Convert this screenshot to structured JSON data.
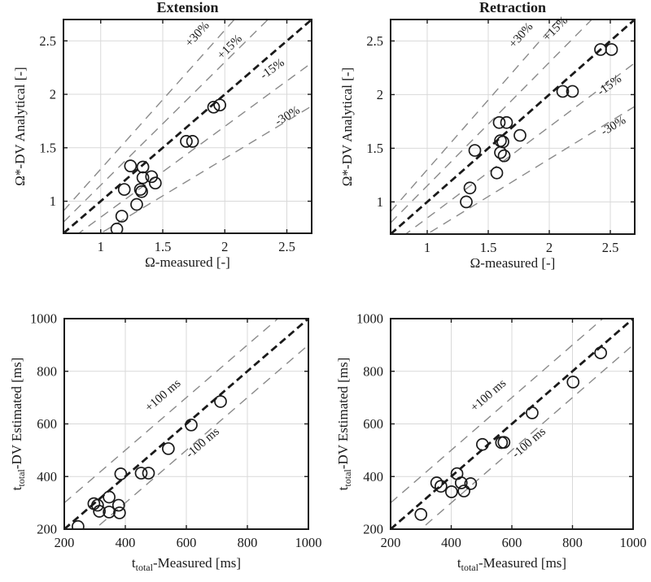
{
  "figure": {
    "background": "#ffffff",
    "ink_color": "#1a1a1a",
    "tolerance_color": "#8a8a8a",
    "grid_color": "#d9d9d9"
  },
  "chart_data": [
    {
      "id": "extension-omega",
      "type": "scatter",
      "title": "Extension",
      "xlabel": [
        {
          "text": "Ω-measured [-]",
          "sub": false
        }
      ],
      "ylabel": [
        {
          "text": "Ω*-DV Analytical [-]",
          "sub": false
        }
      ],
      "xlim": [
        0.7,
        2.7
      ],
      "ylim": [
        0.7,
        2.7
      ],
      "xticks": [
        1,
        1.5,
        2,
        2.5
      ],
      "yticks": [
        1,
        1.5,
        2,
        2.5
      ],
      "grid": true,
      "legend": "none",
      "ref_lines": [
        {
          "slope": 1.3,
          "offset": 0,
          "role": "tolerance",
          "label": "+30%"
        },
        {
          "slope": 1.15,
          "offset": 0,
          "role": "tolerance",
          "label": "+15%"
        },
        {
          "slope": 1.0,
          "offset": 0,
          "role": "identity",
          "label": ""
        },
        {
          "slope": 0.85,
          "offset": 0,
          "role": "tolerance",
          "label": "-15%"
        },
        {
          "slope": 0.7,
          "offset": 0,
          "role": "tolerance",
          "label": "-30%"
        }
      ],
      "annotations": [
        {
          "text": "+30%",
          "x": 1.8,
          "y": 2.54,
          "rot": -48
        },
        {
          "text": "+15%",
          "x": 2.06,
          "y": 2.42,
          "rot": -45
        },
        {
          "text": "-15%",
          "x": 2.4,
          "y": 2.21,
          "rot": -36
        },
        {
          "text": "-30%",
          "x": 2.52,
          "y": 1.77,
          "rot": -31
        }
      ],
      "points": [
        [
          1.13,
          0.74
        ],
        [
          1.17,
          0.86
        ],
        [
          1.29,
          0.97
        ],
        [
          1.19,
          1.11
        ],
        [
          1.32,
          1.11
        ],
        [
          1.33,
          1.09
        ],
        [
          1.24,
          1.33
        ],
        [
          1.34,
          1.32
        ],
        [
          1.34,
          1.22
        ],
        [
          1.41,
          1.23
        ],
        [
          1.44,
          1.17
        ],
        [
          1.69,
          1.56
        ],
        [
          1.74,
          1.56
        ],
        [
          1.91,
          1.88
        ],
        [
          1.96,
          1.9
        ]
      ]
    },
    {
      "id": "retraction-omega",
      "type": "scatter",
      "title": "Retraction",
      "xlabel": [
        {
          "text": "Ω-measured [-]",
          "sub": false
        }
      ],
      "ylabel": [
        {
          "text": "Ω*-DV Analytical [-]",
          "sub": false
        }
      ],
      "xlim": [
        0.7,
        2.7
      ],
      "ylim": [
        0.7,
        2.7
      ],
      "xticks": [
        1,
        1.5,
        2,
        2.5
      ],
      "yticks": [
        1,
        1.5,
        2,
        2.5
      ],
      "grid": true,
      "legend": "none",
      "ref_lines": [
        {
          "slope": 1.3,
          "offset": 0,
          "role": "tolerance",
          "label": "+30%"
        },
        {
          "slope": 1.15,
          "offset": 0,
          "role": "tolerance",
          "label": "+15%"
        },
        {
          "slope": 1.0,
          "offset": 0,
          "role": "identity",
          "label": ""
        },
        {
          "slope": 0.85,
          "offset": 0,
          "role": "tolerance",
          "label": "-15%"
        },
        {
          "slope": 0.7,
          "offset": 0,
          "role": "tolerance",
          "label": "-30%"
        }
      ],
      "annotations": [
        {
          "text": "+30%",
          "x": 1.79,
          "y": 2.53,
          "rot": -48
        },
        {
          "text": "+15%",
          "x": 2.07,
          "y": 2.59,
          "rot": -45
        },
        {
          "text": "-15%",
          "x": 2.51,
          "y": 2.06,
          "rot": -36
        },
        {
          "text": "-30%",
          "x": 2.54,
          "y": 1.68,
          "rot": -31
        }
      ],
      "points": [
        [
          1.32,
          1.0
        ],
        [
          1.35,
          1.13
        ],
        [
          1.57,
          1.27
        ],
        [
          1.39,
          1.48
        ],
        [
          1.6,
          1.46
        ],
        [
          1.63,
          1.43
        ],
        [
          1.6,
          1.57
        ],
        [
          1.62,
          1.56
        ],
        [
          1.59,
          1.74
        ],
        [
          1.65,
          1.74
        ],
        [
          1.76,
          1.62
        ],
        [
          2.11,
          2.03
        ],
        [
          2.19,
          2.03
        ],
        [
          2.42,
          2.42
        ],
        [
          2.51,
          2.42
        ]
      ]
    },
    {
      "id": "extension-time",
      "type": "scatter",
      "title": "",
      "xlabel": [
        {
          "text": "t",
          "sub": false
        },
        {
          "text": "total",
          "sub": true
        },
        {
          "text": "-Measured [ms]",
          "sub": false
        }
      ],
      "ylabel": [
        {
          "text": "t",
          "sub": false
        },
        {
          "text": "total",
          "sub": true
        },
        {
          "text": "-DV Estimated [ms]",
          "sub": false
        }
      ],
      "xlim": [
        200,
        1000
      ],
      "ylim": [
        200,
        1000
      ],
      "xticks": [
        200,
        400,
        600,
        800,
        1000
      ],
      "yticks": [
        200,
        400,
        600,
        800,
        1000
      ],
      "grid": true,
      "legend": "none",
      "ref_lines": [
        {
          "slope": 1,
          "offset": 100,
          "role": "tolerance",
          "label": "+100 ms"
        },
        {
          "slope": 1,
          "offset": 0,
          "role": "identity",
          "label": ""
        },
        {
          "slope": 1,
          "offset": -100,
          "role": "tolerance",
          "label": "-100 ms"
        }
      ],
      "annotations": [
        {
          "text": "+100 ms",
          "x": 531,
          "y": 698,
          "rot": -41
        },
        {
          "text": "-100 ms",
          "x": 661,
          "y": 518,
          "rot": -41
        }
      ],
      "points": [
        [
          245,
          210
        ],
        [
          297,
          297
        ],
        [
          309,
          291
        ],
        [
          315,
          268
        ],
        [
          347,
          322
        ],
        [
          347,
          265
        ],
        [
          378,
          291
        ],
        [
          381,
          262
        ],
        [
          385,
          410
        ],
        [
          452,
          413
        ],
        [
          476,
          413
        ],
        [
          541,
          506
        ],
        [
          616,
          596
        ],
        [
          712,
          685
        ]
      ]
    },
    {
      "id": "retraction-time",
      "type": "scatter",
      "title": "",
      "xlabel": [
        {
          "text": "t",
          "sub": false
        },
        {
          "text": "total",
          "sub": true
        },
        {
          "text": "-Measured [ms]",
          "sub": false
        }
      ],
      "ylabel": [
        {
          "text": "t",
          "sub": false
        },
        {
          "text": "total",
          "sub": true
        },
        {
          "text": "-DV Estimated [ms]",
          "sub": false
        }
      ],
      "xlim": [
        200,
        1000
      ],
      "ylim": [
        200,
        1000
      ],
      "xticks": [
        200,
        400,
        600,
        800,
        1000
      ],
      "yticks": [
        200,
        400,
        600,
        800,
        1000
      ],
      "grid": true,
      "legend": "none",
      "ref_lines": [
        {
          "slope": 1,
          "offset": 100,
          "role": "tolerance",
          "label": "+100 ms"
        },
        {
          "slope": 1,
          "offset": 0,
          "role": "identity",
          "label": ""
        },
        {
          "slope": 1,
          "offset": -100,
          "role": "tolerance",
          "label": "-100 ms"
        }
      ],
      "annotations": [
        {
          "text": "+100 ms",
          "x": 530,
          "y": 698,
          "rot": -41
        },
        {
          "text": "-100 ms",
          "x": 664,
          "y": 518,
          "rot": -41
        }
      ],
      "points": [
        [
          300,
          256
        ],
        [
          352,
          376
        ],
        [
          366,
          363
        ],
        [
          401,
          342
        ],
        [
          419,
          411
        ],
        [
          433,
          376
        ],
        [
          442,
          345
        ],
        [
          464,
          373
        ],
        [
          503,
          522
        ],
        [
          566,
          529
        ],
        [
          574,
          530
        ],
        [
          667,
          642
        ],
        [
          802,
          759
        ],
        [
          893,
          870
        ]
      ]
    }
  ]
}
